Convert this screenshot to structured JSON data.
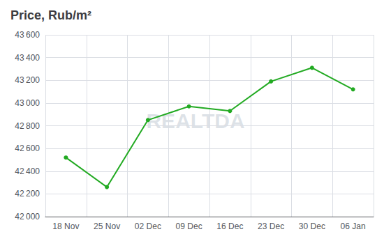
{
  "chart_data": {
    "type": "line",
    "title": "Price, Rub/m²",
    "categories": [
      "18 Nov",
      "25 Nov",
      "02 Dec",
      "09 Dec",
      "16 Dec",
      "23 Dec",
      "30 Dec",
      "06 Jan"
    ],
    "values": [
      42520,
      42260,
      42850,
      42970,
      42930,
      43190,
      43310,
      43120
    ],
    "color": "#22aa22",
    "marker": "circle",
    "ylim": [
      42000,
      43600
    ],
    "yticks": [
      {
        "value": 42000,
        "label": "42 000"
      },
      {
        "value": 42200,
        "label": "42 200"
      },
      {
        "value": 42400,
        "label": "42 400"
      },
      {
        "value": 42600,
        "label": "42 600"
      },
      {
        "value": 42800,
        "label": "42 800"
      },
      {
        "value": 43000,
        "label": "43 000"
      },
      {
        "value": 43200,
        "label": "43 200"
      },
      {
        "value": 43400,
        "label": "43 400"
      },
      {
        "value": 43600,
        "label": "43 600"
      }
    ],
    "grid": true,
    "annotations": [
      "REALTDA"
    ]
  }
}
